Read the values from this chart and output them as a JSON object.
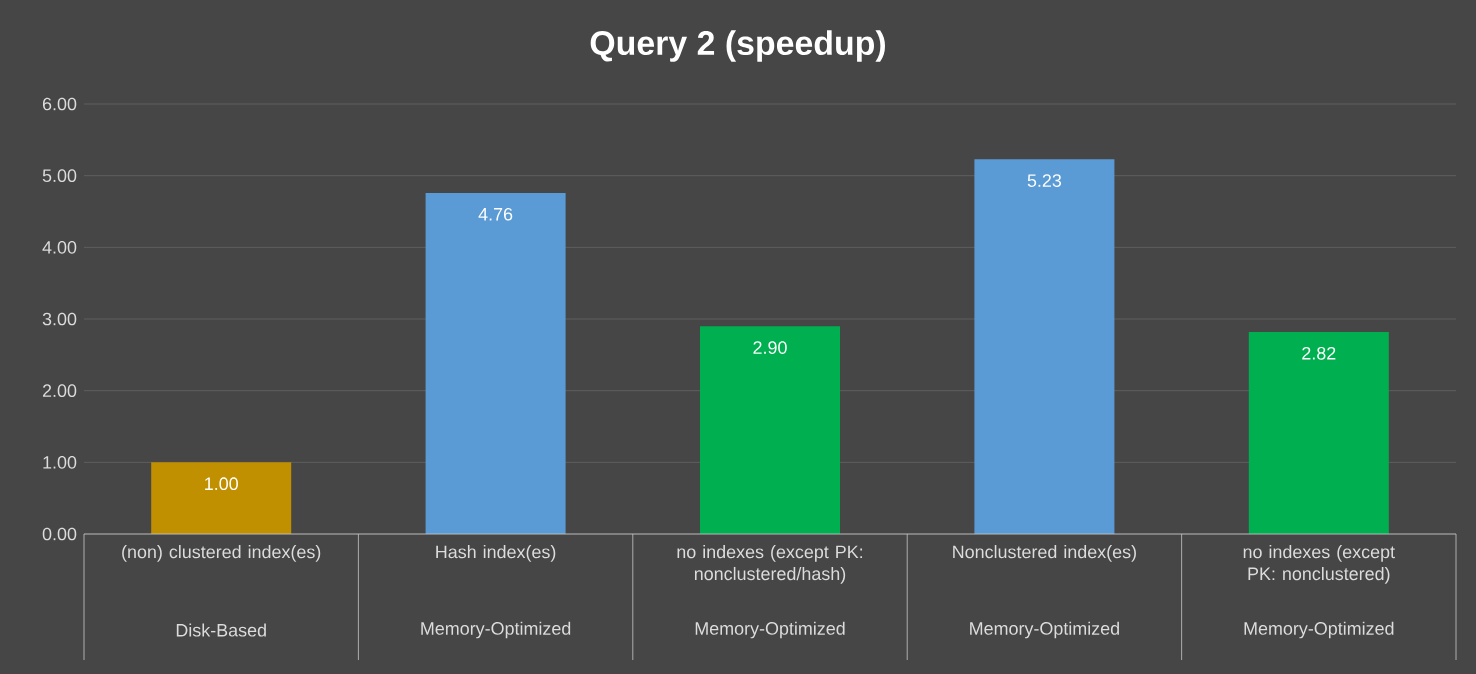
{
  "chart_data": {
    "type": "bar",
    "title": "Query 2 (speedup)",
    "categories": [
      "(non) clustered index(es)",
      "Hash index(es)",
      "no indexes (except PK: nonclustered/hash)",
      "Nonclustered index(es)",
      "no indexes (except PK: nonclustered)"
    ],
    "values": [
      1.0,
      4.76,
      2.9,
      5.23,
      2.82
    ],
    "colors": [
      "#c09000",
      "#5b9bd5",
      "#00b050",
      "#5b9bd5",
      "#00b050"
    ],
    "value_labels": [
      "1.00",
      "4.76",
      "2.90",
      "5.23",
      "2.82"
    ],
    "annotations": [
      "Disk-Based",
      "Memory-Optimized",
      "Memory-Optimized",
      "Memory-Optimized",
      "Memory-Optimized"
    ],
    "ylim": [
      0,
      6
    ],
    "yticks": [
      {
        "value": 0,
        "label": "0.00"
      },
      {
        "value": 1,
        "label": "1.00"
      },
      {
        "value": 2,
        "label": "2.00"
      },
      {
        "value": 3,
        "label": "3.00"
      },
      {
        "value": 4,
        "label": "4.00"
      },
      {
        "value": 5,
        "label": "5.00"
      },
      {
        "value": 6,
        "label": "6.00"
      }
    ],
    "grid": "y"
  }
}
